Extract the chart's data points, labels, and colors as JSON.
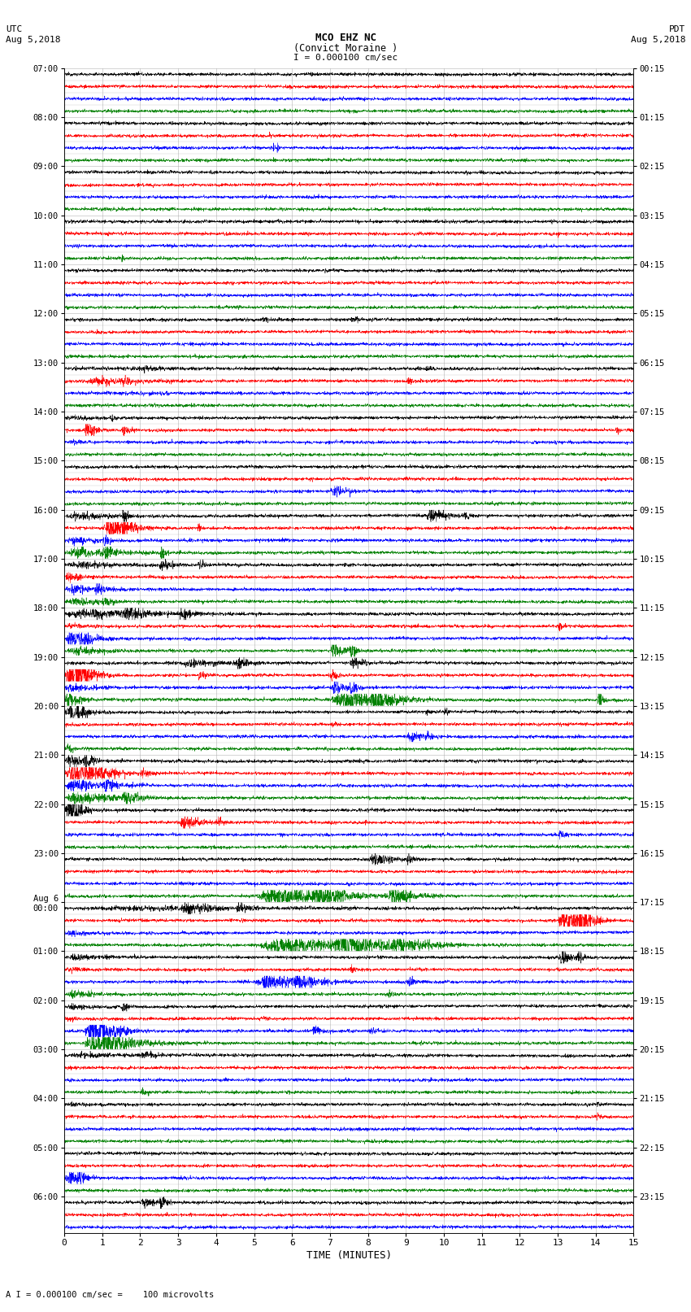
{
  "title_line1": "MCO EHZ NC",
  "title_line2": "(Convict Moraine )",
  "scale_text": "I = 0.000100 cm/sec",
  "left_label_top": "UTC",
  "left_label_date": "Aug 5,2018",
  "right_label_top": "PDT",
  "right_label_date": "Aug 5,2018",
  "bottom_label": "TIME (MINUTES)",
  "bottom_note": "A I = 0.000100 cm/sec =    100 microvolts",
  "xlabel_ticks": [
    0,
    1,
    2,
    3,
    4,
    5,
    6,
    7,
    8,
    9,
    10,
    11,
    12,
    13,
    14,
    15
  ],
  "utc_times": [
    "07:00",
    "",
    "",
    "",
    "08:00",
    "",
    "",
    "",
    "09:00",
    "",
    "",
    "",
    "10:00",
    "",
    "",
    "",
    "11:00",
    "",
    "",
    "",
    "12:00",
    "",
    "",
    "",
    "13:00",
    "",
    "",
    "",
    "14:00",
    "",
    "",
    "",
    "15:00",
    "",
    "",
    "",
    "16:00",
    "",
    "",
    "",
    "17:00",
    "",
    "",
    "",
    "18:00",
    "",
    "",
    "",
    "19:00",
    "",
    "",
    "",
    "20:00",
    "",
    "",
    "",
    "21:00",
    "",
    "",
    "",
    "22:00",
    "",
    "",
    "",
    "23:00",
    "",
    "",
    "",
    "Aug 6\n00:00",
    "",
    "",
    "",
    "01:00",
    "",
    "",
    "",
    "02:00",
    "",
    "",
    "",
    "03:00",
    "",
    "",
    "",
    "04:00",
    "",
    "",
    "",
    "05:00",
    "",
    "",
    "",
    "06:00",
    "",
    ""
  ],
  "pdt_times": [
    "00:15",
    "",
    "",
    "",
    "01:15",
    "",
    "",
    "",
    "02:15",
    "",
    "",
    "",
    "03:15",
    "",
    "",
    "",
    "04:15",
    "",
    "",
    "",
    "05:15",
    "",
    "",
    "",
    "06:15",
    "",
    "",
    "",
    "07:15",
    "",
    "",
    "",
    "08:15",
    "",
    "",
    "",
    "09:15",
    "",
    "",
    "",
    "10:15",
    "",
    "",
    "",
    "11:15",
    "",
    "",
    "",
    "12:15",
    "",
    "",
    "",
    "13:15",
    "",
    "",
    "",
    "14:15",
    "",
    "",
    "",
    "15:15",
    "",
    "",
    "",
    "16:15",
    "",
    "",
    "",
    "17:15",
    "",
    "",
    "",
    "18:15",
    "",
    "",
    "",
    "19:15",
    "",
    "",
    "",
    "20:15",
    "",
    "",
    "",
    "21:15",
    "",
    "",
    "",
    "22:15",
    "",
    "",
    "",
    "23:15",
    "",
    ""
  ],
  "n_rows": 95,
  "trace_colors": [
    "black",
    "red",
    "blue",
    "green"
  ],
  "bg_color": "#ffffff",
  "grid_color": "#aaaaaa",
  "minutes": 15,
  "seed": 12345
}
